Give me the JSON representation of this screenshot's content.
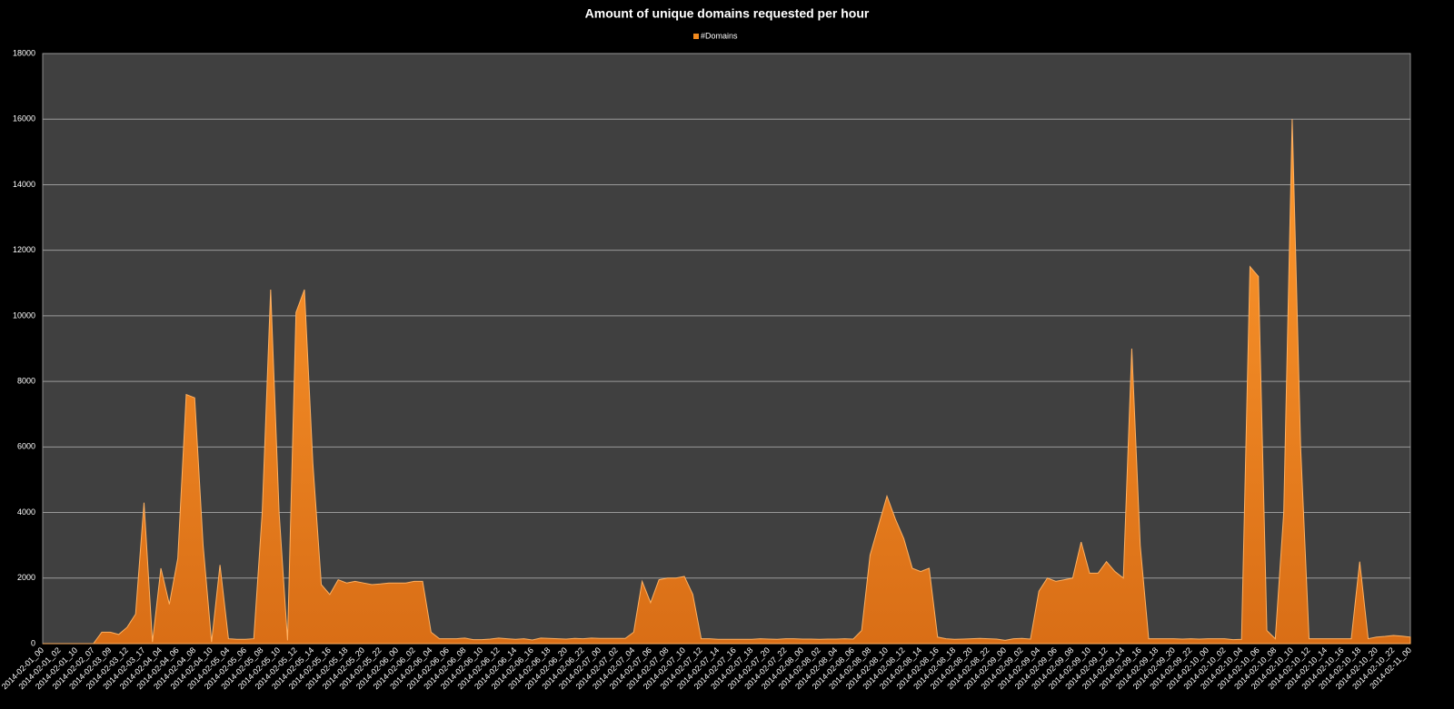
{
  "chart_data": {
    "type": "area",
    "title": "Amount of unique domains requested per hour",
    "categories": [
      "2014-02-01_00",
      null,
      "2014-02-01_02",
      null,
      "2014-02-01_10",
      null,
      "2014-02-02_07",
      null,
      "2014-02-03_09",
      null,
      "2014-02-03_12",
      null,
      "2014-02-03_17",
      null,
      "2014-02-04_04",
      null,
      "2014-02-04_06",
      null,
      "2014-02-04_08",
      null,
      "2014-02-04_10",
      null,
      "2014-02-05_04",
      null,
      "2014-02-05_06",
      null,
      "2014-02-05_08",
      null,
      "2014-02-05_10",
      null,
      "2014-02-05_12",
      null,
      "2014-02-05_14",
      null,
      "2014-02-05_16",
      null,
      "2014-02-05_18",
      null,
      "2014-02-05_20",
      null,
      "2014-02-05_22",
      null,
      "2014-02-06_00",
      null,
      "2014-02-06_02",
      null,
      "2014-02-06_04",
      null,
      "2014-02-06_06",
      null,
      "2014-02-06_08",
      null,
      "2014-02-06_10",
      null,
      "2014-02-06_12",
      null,
      "2014-02-06_14",
      null,
      "2014-02-06_16",
      null,
      "2014-02-06_18",
      null,
      "2014-02-06_20",
      null,
      "2014-02-06_22",
      null,
      "2014-02-07_00",
      null,
      "2014-02-07_02",
      null,
      "2014-02-07_04",
      null,
      "2014-02-07_06",
      null,
      "2014-02-07_08",
      null,
      "2014-02-07_10",
      null,
      "2014-02-07_12",
      null,
      "2014-02-07_14",
      null,
      "2014-02-07_16",
      null,
      "2014-02-07_18",
      null,
      "2014-02-07_20",
      null,
      "2014-02-07_22",
      null,
      "2014-02-08_00",
      null,
      "2014-02-08_02",
      null,
      "2014-02-08_04",
      null,
      "2014-02-08_06",
      null,
      "2014-02-08_08",
      null,
      "2014-02-08_10",
      null,
      "2014-02-08_12",
      null,
      "2014-02-08_14",
      null,
      "2014-02-08_16",
      null,
      "2014-02-08_18",
      null,
      "2014-02-08_20",
      null,
      "2014-02-08_22",
      null,
      "2014-02-09_00",
      null,
      "2014-02-09_02",
      null,
      "2014-02-09_04",
      null,
      "2014-02-09_06",
      null,
      "2014-02-09_08",
      null,
      "2014-02-09_10",
      null,
      "2014-02-09_12",
      null,
      "2014-02-09_14",
      null,
      "2014-02-09_16",
      null,
      "2014-02-09_18",
      null,
      "2014-02-09_20",
      null,
      "2014-02-09_22",
      null,
      "2014-02-10_00",
      null,
      "2014-02-10_02",
      null,
      "2014-02-10_04",
      null,
      "2014-02-10_06",
      null,
      "2014-02-10_08",
      null,
      "2014-02-10_10",
      null,
      "2014-02-10_12",
      null,
      "2014-02-10_14",
      null,
      "2014-02-10_16",
      null,
      "2014-02-10_18",
      null,
      "2014-02-10_20",
      null,
      "2014-02-10_22",
      null,
      "2014-02-11_00"
    ],
    "series": [
      {
        "name": "#Domains",
        "color": "#f28a1e",
        "values": [
          0,
          0,
          0,
          0,
          0,
          0,
          0,
          350,
          350,
          280,
          500,
          900,
          4300,
          50,
          2300,
          1200,
          2600,
          7600,
          7500,
          3000,
          50,
          2400,
          150,
          130,
          130,
          150,
          4000,
          10800,
          4000,
          100,
          10100,
          10800,
          5500,
          1800,
          1500,
          1950,
          1850,
          1900,
          1850,
          1800,
          1820,
          1850,
          1850,
          1850,
          1900,
          1900,
          350,
          150,
          150,
          150,
          170,
          120,
          120,
          140,
          170,
          150,
          130,
          150,
          110,
          170,
          160,
          150,
          140,
          160,
          150,
          170,
          160,
          160,
          160,
          160,
          350,
          1900,
          1250,
          1950,
          2000,
          2000,
          2050,
          1500,
          150,
          150,
          130,
          130,
          130,
          130,
          130,
          150,
          140,
          130,
          150,
          150,
          140,
          140,
          130,
          140,
          140,
          150,
          140,
          400,
          2700,
          3600,
          4500,
          3800,
          3200,
          2300,
          2200,
          2300,
          200,
          150,
          130,
          140,
          150,
          160,
          150,
          140,
          100,
          150,
          160,
          140,
          1600,
          2000,
          1900,
          1950,
          2000,
          3100,
          2150,
          2150,
          2500,
          2200,
          2000,
          9000,
          3000,
          150,
          150,
          150,
          150,
          140,
          150,
          140,
          150,
          150,
          150,
          120,
          130,
          11500,
          11200,
          400,
          150,
          4000,
          16000,
          6000,
          150,
          150,
          150,
          150,
          150,
          150,
          2500,
          150,
          200,
          220,
          250,
          230,
          200
        ]
      }
    ],
    "ylim": [
      0,
      18000
    ],
    "yticks": [
      0,
      2000,
      4000,
      6000,
      8000,
      10000,
      12000,
      14000,
      16000,
      18000
    ],
    "grid": true
  }
}
